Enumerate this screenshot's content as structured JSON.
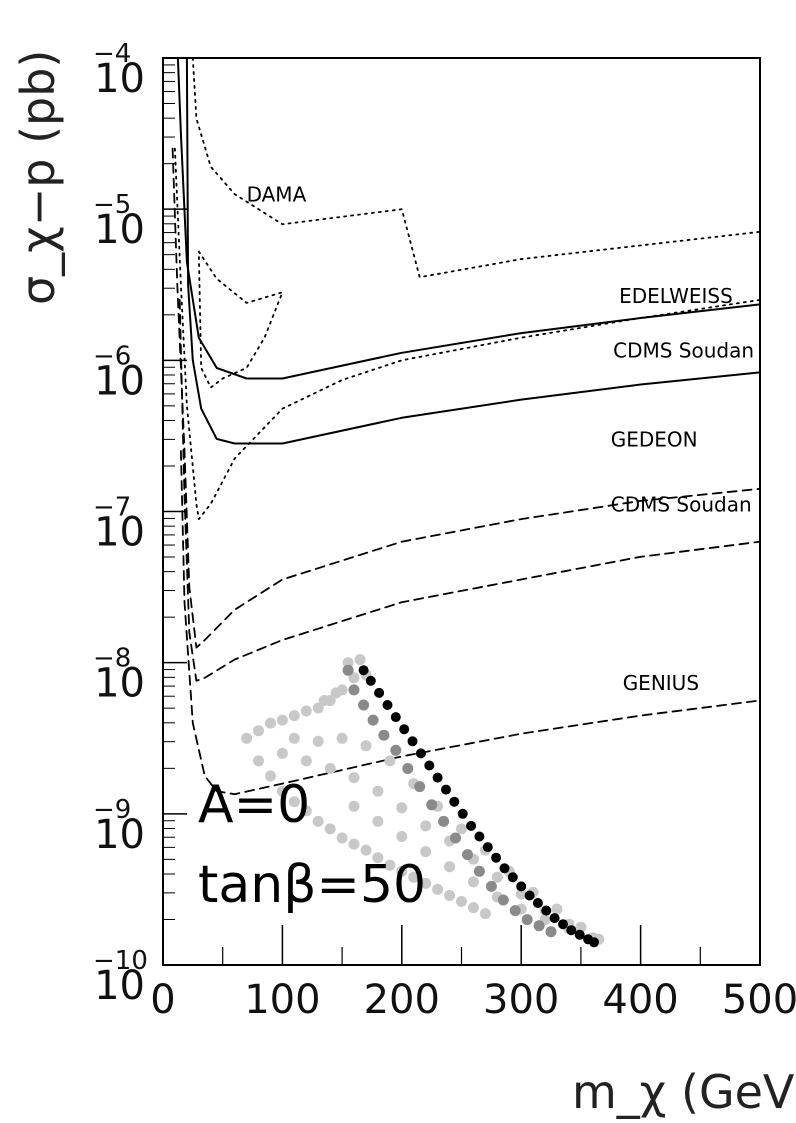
{
  "chart_data": {
    "type": "line",
    "title": "",
    "xlabel": "m_χ (GeV)",
    "ylabel": "σ_χ−p (pb)",
    "xlim": [
      0,
      500
    ],
    "ylim_log10": [
      -10,
      -4
    ],
    "y_scale": "log",
    "x_tick_labels": [
      "0",
      "100",
      "200",
      "300",
      "400",
      "500"
    ],
    "y_tick_labels": [
      {
        "base": "10",
        "exp": "−4"
      },
      {
        "base": "10",
        "exp": "−5"
      },
      {
        "base": "10",
        "exp": "−6"
      },
      {
        "base": "10",
        "exp": "−7"
      },
      {
        "base": "10",
        "exp": "−8"
      },
      {
        "base": "10",
        "exp": "−9"
      },
      {
        "base": "10",
        "exp": "−10"
      }
    ],
    "annotations": [
      "A=0",
      "tanβ=50"
    ],
    "series": [
      {
        "name": "DAMA",
        "style": "dotted",
        "points": [
          [
            25,
            -4.0
          ],
          [
            28,
            -4.4
          ],
          [
            40,
            -4.72
          ],
          [
            60,
            -4.9
          ],
          [
            100,
            -5.1
          ],
          [
            200,
            -5.0
          ],
          [
            215,
            -5.45
          ],
          [
            300,
            -5.33
          ],
          [
            400,
            -5.24
          ],
          [
            500,
            -5.15
          ]
        ]
      },
      {
        "name": "",
        "style": "dotted",
        "points": [
          [
            30,
            -5.28
          ],
          [
            45,
            -5.46
          ],
          [
            70,
            -5.62
          ],
          [
            100,
            -5.55
          ],
          [
            85,
            -5.85
          ],
          [
            70,
            -6.05
          ],
          [
            50,
            -6.12
          ],
          [
            40,
            -6.18
          ],
          [
            32,
            -6.05
          ],
          [
            30,
            -5.28
          ]
        ]
      },
      {
        "name": "EDELWEISS",
        "style": "solid",
        "points": [
          [
            12,
            -3.9
          ],
          [
            15,
            -4.5
          ],
          [
            20,
            -5.35
          ],
          [
            30,
            -5.85
          ],
          [
            45,
            -6.05
          ],
          [
            70,
            -6.12
          ],
          [
            100,
            -6.12
          ],
          [
            200,
            -5.95
          ],
          [
            300,
            -5.82
          ],
          [
            400,
            -5.72
          ],
          [
            500,
            -5.63
          ]
        ]
      },
      {
        "name": "CDMS Soudan",
        "style": "solid",
        "points": [
          [
            20,
            -4.0
          ],
          [
            21,
            -5.5
          ],
          [
            25,
            -6.0
          ],
          [
            32,
            -6.32
          ],
          [
            45,
            -6.52
          ],
          [
            60,
            -6.55
          ],
          [
            100,
            -6.55
          ],
          [
            200,
            -6.38
          ],
          [
            300,
            -6.26
          ],
          [
            400,
            -6.16
          ],
          [
            500,
            -6.08
          ]
        ]
      },
      {
        "name": "",
        "style": "dotted",
        "points": [
          [
            10,
            -4.6
          ],
          [
            15,
            -5.5
          ],
          [
            20,
            -6.3
          ],
          [
            28,
            -6.95
          ],
          [
            30,
            -7.05
          ],
          [
            40,
            -6.95
          ],
          [
            60,
            -6.65
          ],
          [
            100,
            -6.32
          ],
          [
            150,
            -6.13
          ],
          [
            200,
            -6.0
          ],
          [
            300,
            -5.85
          ],
          [
            400,
            -5.72
          ],
          [
            500,
            -5.6
          ]
        ]
      },
      {
        "name": "GEDEON",
        "style": "dashed",
        "points": [
          [
            8,
            -4.6
          ],
          [
            12,
            -5.5
          ],
          [
            18,
            -6.6
          ],
          [
            22,
            -7.5
          ],
          [
            28,
            -7.9
          ],
          [
            35,
            -7.85
          ],
          [
            60,
            -7.65
          ],
          [
            100,
            -7.45
          ],
          [
            200,
            -7.2
          ],
          [
            300,
            -7.05
          ],
          [
            400,
            -6.93
          ],
          [
            500,
            -6.85
          ]
        ]
      },
      {
        "name": "CDMS Soudan",
        "style": "dashed",
        "points": [
          [
            14,
            -5.6
          ],
          [
            18,
            -6.9
          ],
          [
            22,
            -7.8
          ],
          [
            28,
            -8.12
          ],
          [
            35,
            -8.1
          ],
          [
            60,
            -7.98
          ],
          [
            100,
            -7.85
          ],
          [
            200,
            -7.6
          ],
          [
            300,
            -7.45
          ],
          [
            400,
            -7.3
          ],
          [
            500,
            -7.2
          ]
        ]
      },
      {
        "name": "GENIUS",
        "style": "dashed",
        "points": [
          [
            15,
            -6.6
          ],
          [
            18,
            -7.6
          ],
          [
            25,
            -8.4
          ],
          [
            35,
            -8.75
          ],
          [
            45,
            -8.85
          ],
          [
            60,
            -8.87
          ],
          [
            100,
            -8.8
          ],
          [
            200,
            -8.62
          ],
          [
            300,
            -8.47
          ],
          [
            400,
            -8.35
          ],
          [
            500,
            -8.25
          ]
        ]
      }
    ],
    "scatter_groups": [
      {
        "color": "#c8c8c8",
        "points": [
          [
            70,
            -8.5
          ],
          [
            80,
            -8.65
          ],
          [
            90,
            -8.75
          ],
          [
            100,
            -8.85
          ],
          [
            110,
            -8.92
          ],
          [
            120,
            -8.98
          ],
          [
            130,
            -9.05
          ],
          [
            140,
            -9.1
          ],
          [
            150,
            -9.16
          ],
          [
            160,
            -9.2
          ],
          [
            170,
            -9.24
          ],
          [
            180,
            -9.29
          ],
          [
            190,
            -9.34
          ],
          [
            200,
            -9.38
          ],
          [
            210,
            -9.42
          ],
          [
            220,
            -9.46
          ],
          [
            230,
            -9.5
          ],
          [
            240,
            -9.54
          ],
          [
            250,
            -9.58
          ],
          [
            260,
            -9.62
          ],
          [
            270,
            -9.66
          ],
          [
            80,
            -8.45
          ],
          [
            90,
            -8.4
          ],
          [
            100,
            -8.38
          ],
          [
            110,
            -8.35
          ],
          [
            120,
            -8.32
          ],
          [
            130,
            -8.3
          ],
          [
            140,
            -8.25
          ],
          [
            150,
            -8.18
          ],
          [
            100,
            -8.6
          ],
          [
            120,
            -8.65
          ],
          [
            140,
            -8.7
          ],
          [
            160,
            -8.76
          ],
          [
            180,
            -8.85
          ],
          [
            200,
            -8.96
          ],
          [
            220,
            -9.08
          ],
          [
            240,
            -9.18
          ],
          [
            260,
            -9.3
          ],
          [
            280,
            -9.42
          ],
          [
            300,
            -9.53
          ],
          [
            320,
            -9.64
          ],
          [
            340,
            -9.73
          ],
          [
            360,
            -9.82
          ],
          [
            110,
            -8.5
          ],
          [
            130,
            -8.52
          ],
          [
            150,
            -8.5
          ],
          [
            170,
            -8.55
          ],
          [
            190,
            -8.65
          ],
          [
            210,
            -8.8
          ],
          [
            230,
            -8.95
          ],
          [
            250,
            -9.1
          ],
          [
            270,
            -9.24
          ],
          [
            290,
            -9.38
          ],
          [
            310,
            -9.52
          ],
          [
            330,
            -9.63
          ],
          [
            350,
            -9.75
          ],
          [
            160,
            -8.95
          ],
          [
            180,
            -9.05
          ],
          [
            200,
            -9.15
          ],
          [
            220,
            -9.25
          ],
          [
            240,
            -9.35
          ],
          [
            260,
            -9.45
          ],
          [
            280,
            -9.55
          ],
          [
            300,
            -9.63
          ],
          [
            320,
            -9.7
          ],
          [
            340,
            -9.76
          ],
          [
            365,
            -9.83
          ],
          [
            165,
            -7.98
          ],
          [
            170,
            -8.08
          ],
          [
            155,
            -8.0
          ],
          [
            160,
            -8.1
          ],
          [
            145,
            -8.2
          ],
          [
            135,
            -8.25
          ]
        ]
      },
      {
        "color": "#8a8a8a",
        "points": [
          [
            155,
            -8.05
          ],
          [
            160,
            -8.18
          ],
          [
            168,
            -8.28
          ],
          [
            176,
            -8.38
          ],
          [
            185,
            -8.48
          ],
          [
            195,
            -8.58
          ],
          [
            205,
            -8.7
          ],
          [
            215,
            -8.82
          ],
          [
            225,
            -8.94
          ],
          [
            235,
            -9.05
          ],
          [
            245,
            -9.16
          ],
          [
            255,
            -9.27
          ],
          [
            265,
            -9.38
          ],
          [
            275,
            -9.48
          ],
          [
            285,
            -9.57
          ],
          [
            295,
            -9.64
          ],
          [
            305,
            -9.7
          ],
          [
            315,
            -9.74
          ],
          [
            325,
            -9.78
          ]
        ]
      },
      {
        "color": "#000000",
        "points": [
          [
            168,
            -8.05
          ],
          [
            174,
            -8.12
          ],
          [
            181,
            -8.2
          ],
          [
            188,
            -8.28
          ],
          [
            195,
            -8.36
          ],
          [
            202,
            -8.44
          ],
          [
            209,
            -8.52
          ],
          [
            216,
            -8.6
          ],
          [
            223,
            -8.68
          ],
          [
            230,
            -8.76
          ],
          [
            237,
            -8.84
          ],
          [
            244,
            -8.92
          ],
          [
            251,
            -9.0
          ],
          [
            258,
            -9.08
          ],
          [
            265,
            -9.15
          ],
          [
            272,
            -9.22
          ],
          [
            279,
            -9.29
          ],
          [
            286,
            -9.36
          ],
          [
            293,
            -9.42
          ],
          [
            300,
            -9.48
          ],
          [
            307,
            -9.54
          ],
          [
            314,
            -9.59
          ],
          [
            321,
            -9.64
          ],
          [
            328,
            -9.69
          ],
          [
            335,
            -9.73
          ],
          [
            342,
            -9.77
          ],
          [
            349,
            -9.8
          ],
          [
            356,
            -9.83
          ],
          [
            361,
            -9.85
          ]
        ]
      }
    ],
    "curve_labels": [
      {
        "text": "DAMA",
        "x": 70,
        "y": -4.95
      },
      {
        "text": "EDELWEISS",
        "x": 382,
        "y": -5.62
      },
      {
        "text": "CDMS Soudan",
        "x": 377,
        "y": -5.98
      },
      {
        "text": "GEDEON",
        "x": 375,
        "y": -6.57
      },
      {
        "text": "CDMS Soudan",
        "x": 375,
        "y": -7.0
      },
      {
        "text": "GENIUS",
        "x": 385,
        "y": -8.18
      }
    ]
  }
}
